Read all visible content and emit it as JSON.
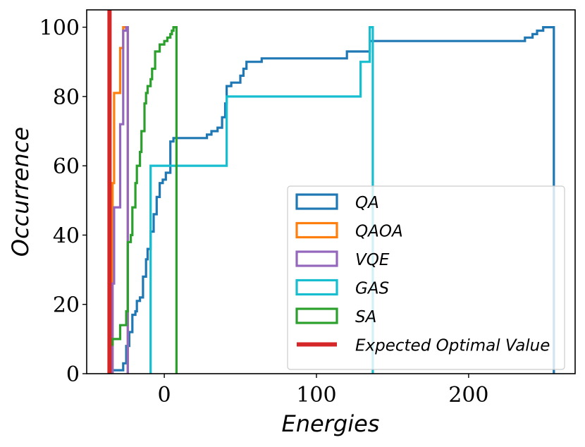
{
  "chart_data": {
    "type": "step",
    "title": "",
    "xlabel": "Energies",
    "ylabel": "Occurrence",
    "xlim": [
      -51,
      270
    ],
    "ylim": [
      0,
      105
    ],
    "xticks": [
      0,
      100,
      200
    ],
    "xtick_labels": [
      "0",
      "100",
      "200"
    ],
    "yticks": [
      0,
      20,
      40,
      60,
      80,
      100
    ],
    "ytick_labels": [
      "0",
      "20",
      "40",
      "60",
      "80",
      "100"
    ],
    "legend_position": "lower-right",
    "series": [
      {
        "name": "QA",
        "color": "#1f77b4",
        "points": [
          [
            -34,
            0
          ],
          [
            -34,
            1
          ],
          [
            -27,
            1
          ],
          [
            -27,
            3
          ],
          [
            -25,
            3
          ],
          [
            -25,
            8
          ],
          [
            -23,
            8
          ],
          [
            -23,
            12
          ],
          [
            -21,
            12
          ],
          [
            -21,
            17
          ],
          [
            -19,
            17
          ],
          [
            -19,
            18
          ],
          [
            -18,
            18
          ],
          [
            -18,
            21
          ],
          [
            -16,
            21
          ],
          [
            -16,
            22
          ],
          [
            -14,
            22
          ],
          [
            -14,
            28
          ],
          [
            -12,
            28
          ],
          [
            -12,
            33
          ],
          [
            -11,
            33
          ],
          [
            -11,
            36
          ],
          [
            -9,
            36
          ],
          [
            -9,
            41
          ],
          [
            -7,
            41
          ],
          [
            -7,
            46
          ],
          [
            -5,
            46
          ],
          [
            -5,
            51
          ],
          [
            -3,
            51
          ],
          [
            -3,
            55
          ],
          [
            -1,
            55
          ],
          [
            -1,
            56
          ],
          [
            1,
            56
          ],
          [
            1,
            58
          ],
          [
            4,
            58
          ],
          [
            4,
            67
          ],
          [
            6,
            67
          ],
          [
            6,
            68
          ],
          [
            28,
            68
          ],
          [
            28,
            69
          ],
          [
            31,
            69
          ],
          [
            31,
            70
          ],
          [
            35,
            70
          ],
          [
            35,
            71
          ],
          [
            38,
            71
          ],
          [
            38,
            74
          ],
          [
            40,
            74
          ],
          [
            40,
            78
          ],
          [
            41,
            78
          ],
          [
            41,
            83
          ],
          [
            44,
            83
          ],
          [
            44,
            84
          ],
          [
            50,
            84
          ],
          [
            50,
            86
          ],
          [
            52,
            86
          ],
          [
            52,
            88
          ],
          [
            54,
            88
          ],
          [
            54,
            90
          ],
          [
            64,
            90
          ],
          [
            64,
            91
          ],
          [
            120,
            91
          ],
          [
            120,
            93
          ],
          [
            135,
            93
          ],
          [
            135,
            96
          ],
          [
            237,
            96
          ],
          [
            237,
            97
          ],
          [
            242,
            97
          ],
          [
            242,
            98
          ],
          [
            245,
            98
          ],
          [
            245,
            99
          ],
          [
            249,
            99
          ],
          [
            249,
            100
          ],
          [
            256,
            100
          ],
          [
            256,
            0
          ]
        ]
      },
      {
        "name": "QAOA",
        "color": "#ff7f0e",
        "points": [
          [
            -34,
            0
          ],
          [
            -34,
            55
          ],
          [
            -33,
            55
          ],
          [
            -33,
            81
          ],
          [
            -29,
            81
          ],
          [
            -29,
            94
          ],
          [
            -27,
            94
          ],
          [
            -27,
            100
          ],
          [
            -24,
            100
          ],
          [
            -24,
            0
          ]
        ]
      },
      {
        "name": "VQE",
        "color": "#9467bd",
        "points": [
          [
            -34,
            0
          ],
          [
            -34,
            26
          ],
          [
            -33,
            26
          ],
          [
            -33,
            48
          ],
          [
            -29,
            48
          ],
          [
            -29,
            72
          ],
          [
            -27,
            72
          ],
          [
            -27,
            99
          ],
          [
            -25,
            99
          ],
          [
            -25,
            100
          ],
          [
            -24,
            100
          ],
          [
            -24,
            0
          ]
        ]
      },
      {
        "name": "GAS",
        "color": "#17becf",
        "points": [
          [
            -9,
            0
          ],
          [
            -9,
            60
          ],
          [
            41,
            60
          ],
          [
            41,
            80
          ],
          [
            129,
            80
          ],
          [
            129,
            90
          ],
          [
            135,
            90
          ],
          [
            135,
            100
          ],
          [
            137,
            100
          ],
          [
            137,
            0
          ]
        ]
      },
      {
        "name": "SA",
        "color": "#2ca02c",
        "points": [
          [
            -34,
            8
          ],
          [
            -34,
            10
          ],
          [
            -29,
            10
          ],
          [
            -29,
            14
          ],
          [
            -25,
            14
          ],
          [
            -25,
            18
          ],
          [
            -24,
            18
          ],
          [
            -24,
            38
          ],
          [
            -22,
            38
          ],
          [
            -22,
            40
          ],
          [
            -21,
            40
          ],
          [
            -21,
            48
          ],
          [
            -19,
            48
          ],
          [
            -19,
            55
          ],
          [
            -18,
            55
          ],
          [
            -18,
            60
          ],
          [
            -16,
            60
          ],
          [
            -16,
            64
          ],
          [
            -15,
            64
          ],
          [
            -15,
            70
          ],
          [
            -13,
            70
          ],
          [
            -13,
            78
          ],
          [
            -12,
            78
          ],
          [
            -12,
            81
          ],
          [
            -11,
            81
          ],
          [
            -11,
            83
          ],
          [
            -9,
            83
          ],
          [
            -9,
            85
          ],
          [
            -8,
            85
          ],
          [
            -8,
            88
          ],
          [
            -6,
            88
          ],
          [
            -6,
            93
          ],
          [
            -3,
            93
          ],
          [
            -3,
            95
          ],
          [
            0,
            95
          ],
          [
            0,
            96
          ],
          [
            2,
            96
          ],
          [
            2,
            97
          ],
          [
            4,
            97
          ],
          [
            4,
            98
          ],
          [
            5,
            98
          ],
          [
            5,
            99
          ],
          [
            6,
            99
          ],
          [
            6,
            100
          ],
          [
            8,
            100
          ],
          [
            8,
            0
          ]
        ]
      }
    ],
    "vlines": [
      {
        "name": "Expected Optimal Value",
        "x": -36,
        "color": "#d62728"
      }
    ]
  }
}
